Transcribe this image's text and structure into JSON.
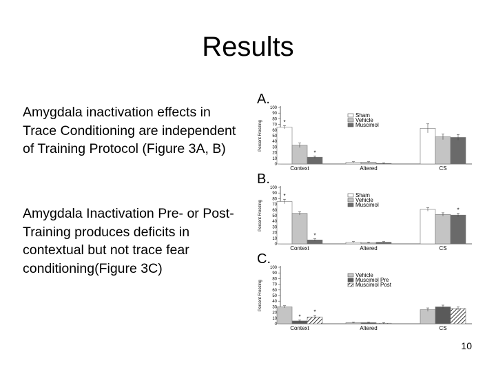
{
  "slide": {
    "title": "Results",
    "paragraph_1": "Amygdala inactivation effects in Trace Conditioning are independent of Training Protocol (Figure 3A, B)",
    "paragraph_2": "Amygdala Inactivation Pre- or Post-Training produces deficits in contextual but not trace fear conditioning(Figure 3C)",
    "page_number": "10"
  },
  "chart_data": [
    {
      "panel_label": "A.",
      "type": "bar",
      "ylabel": "Percent Freezing",
      "ylim": [
        0,
        100
      ],
      "yticks": [
        "0",
        "10",
        "20",
        "30",
        "40",
        "50",
        "60",
        "70",
        "80",
        "90",
        "100"
      ],
      "categories": [
        "Context",
        "Altered",
        "CS"
      ],
      "series": [
        {
          "name": "Sham",
          "color": "#ffffff",
          "pattern": "none",
          "values": [
            65,
            3,
            63
          ],
          "errors": [
            3,
            1,
            8
          ]
        },
        {
          "name": "Vehicle",
          "color": "#c4c4c4",
          "pattern": "none",
          "values": [
            33,
            3,
            48
          ],
          "errors": [
            4,
            1,
            5
          ]
        },
        {
          "name": "Muscimol",
          "color": "#6a6a6a",
          "pattern": "none",
          "values": [
            12,
            1,
            47
          ],
          "errors": [
            2,
            1,
            5
          ]
        }
      ],
      "annotations": [
        {
          "category": "Context",
          "series": "Sham",
          "text": "*"
        },
        {
          "category": "Context",
          "series": "Muscimol",
          "text": "*"
        }
      ]
    },
    {
      "panel_label": "B.",
      "type": "bar",
      "ylabel": "Percent Freezing",
      "ylim": [
        0,
        100
      ],
      "yticks": [
        "0",
        "10",
        "20",
        "30",
        "40",
        "50",
        "60",
        "70",
        "80",
        "90",
        "100"
      ],
      "categories": [
        "Context",
        "Altered",
        "CS"
      ],
      "series": [
        {
          "name": "Sham",
          "color": "#ffffff",
          "pattern": "none",
          "values": [
            75,
            3,
            61
          ],
          "errors": [
            4,
            1,
            3
          ]
        },
        {
          "name": "Vehicle",
          "color": "#c4c4c4",
          "pattern": "none",
          "values": [
            54,
            2,
            52
          ],
          "errors": [
            3,
            1,
            3
          ]
        },
        {
          "name": "Muscimol",
          "color": "#6a6a6a",
          "pattern": "none",
          "values": [
            7,
            3,
            51
          ],
          "errors": [
            2,
            1,
            3
          ]
        }
      ],
      "annotations": [
        {
          "category": "Context",
          "series": "Sham",
          "text": "*"
        },
        {
          "category": "Context",
          "series": "Muscimol",
          "text": "*"
        },
        {
          "category": "CS",
          "series": "Muscimol",
          "text": "*"
        }
      ]
    },
    {
      "panel_label": "C.",
      "type": "bar",
      "ylabel": "Percent Freezing",
      "ylim": [
        0,
        100
      ],
      "yticks": [
        "0",
        "10",
        "20",
        "30",
        "40",
        "50",
        "60",
        "70",
        "80",
        "90",
        "100"
      ],
      "categories": [
        "Context",
        "Altered",
        "CS"
      ],
      "series": [
        {
          "name": "Vehicle",
          "color": "#c4c4c4",
          "pattern": "none",
          "values": [
            30,
            2,
            25
          ],
          "errors": [
            2,
            1,
            3
          ]
        },
        {
          "name": "Muscimol Pre",
          "color": "#5a5a5a",
          "pattern": "none",
          "values": [
            5,
            2,
            30
          ],
          "errors": [
            2,
            1,
            3
          ]
        },
        {
          "name": "Muscimol Post",
          "color": "#ffffff",
          "pattern": "hatch",
          "values": [
            12,
            1,
            27
          ],
          "errors": [
            3,
            1,
            3
          ]
        }
      ],
      "annotations": [
        {
          "category": "Context",
          "series": "Muscimol Pre",
          "text": "*"
        },
        {
          "category": "Context",
          "series": "Muscimol Post",
          "text": "*"
        }
      ]
    }
  ]
}
